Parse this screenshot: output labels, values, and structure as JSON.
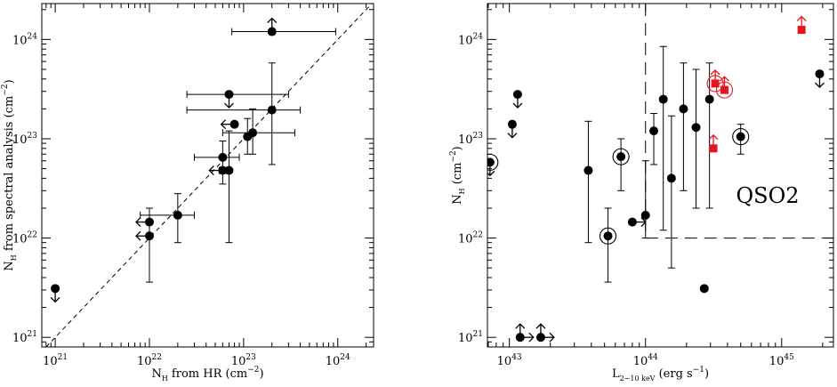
{
  "chart_data": [
    {
      "type": "scatter",
      "xlabel": {
        "main": "N",
        "sub": "H",
        "rest": " from HR (cm",
        "sup": "−2",
        "end": ")"
      },
      "ylabel": {
        "main": "N",
        "sub": "H",
        "rest": " from spectral analysis (cm",
        "sup": "−2",
        "end": ")"
      },
      "xscale": "log",
      "yscale": "log",
      "xlim": [
        7.2e+20,
        2.4e+24
      ],
      "ylim": [
        8e+20,
        2.3e+24
      ],
      "x_ticks": [
        {
          "mant": "10",
          "exp": "21",
          "value": 1e+21
        },
        {
          "mant": "10",
          "exp": "22",
          "value": 1e+22
        },
        {
          "mant": "10",
          "exp": "23",
          "value": 1e+23
        },
        {
          "mant": "10",
          "exp": "24",
          "value": 1e+24
        }
      ],
      "y_ticks": [
        {
          "mant": "10",
          "exp": "21",
          "value": 1e+21
        },
        {
          "mant": "10",
          "exp": "22",
          "value": 1e+22
        },
        {
          "mant": "10",
          "exp": "23",
          "value": 1e+23
        },
        {
          "mant": "10",
          "exp": "24",
          "value": 1e+24
        }
      ],
      "reference_line": "y = x (dashed)",
      "points": [
        {
          "x": 1e+21,
          "y": 3.1e+21,
          "limit": "down"
        },
        {
          "x": 1e+22,
          "y": 1.45e+22,
          "limit": "left"
        },
        {
          "x": 1e+22,
          "y": 1.05e+22,
          "limit": "left",
          "yerr": [
            3.6e+21,
            2e+22
          ]
        },
        {
          "x": 2e+22,
          "y": 1.7e+22,
          "xerr": [
            8e+21,
            3e+22
          ],
          "yerr": [
            9e+21,
            2.8e+22
          ]
        },
        {
          "x": 6e+22,
          "y": 6.5e+22,
          "xerr": [
            3e+22,
            9e+22
          ],
          "yerr": [
            3.5e+22,
            9.5e+22
          ]
        },
        {
          "x": 6e+22,
          "y": 4.8e+22,
          "limit": "left"
        },
        {
          "x": 7e+22,
          "y": 4.8e+22,
          "xerr": [
            5.5e+22,
            7e+22
          ],
          "yerr": [
            9e+21,
            1.2e+23
          ]
        },
        {
          "x": 7e+22,
          "y": 2.8e+23,
          "xerr": [
            2.5e+22,
            3e+23
          ],
          "limit": "down"
        },
        {
          "x": 8e+22,
          "y": 1.4e+23,
          "limit": "left"
        },
        {
          "x": 1.1e+23,
          "y": 1.05e+23,
          "yerr": [
            7e+22,
            1.6e+23
          ]
        },
        {
          "x": 1.25e+23,
          "y": 1.15e+23,
          "xerr": [
            6e+22,
            3.5e+23
          ],
          "yerr": [
            7e+22,
            2e+23
          ]
        },
        {
          "x": 2e+23,
          "y": 1.95e+23,
          "xerr": [
            2.5e+22,
            4e+23
          ],
          "yerr": [
            5.5e+22,
            5.8e+23
          ]
        },
        {
          "x": 2e+23,
          "y": 1.2e+24,
          "xerr": [
            7.5e+22,
            9.5e+23
          ],
          "limit": "up"
        }
      ]
    },
    {
      "type": "scatter",
      "xlabel": {
        "main": "L",
        "sub": "2−10 keV",
        "rest": " (erg s",
        "sup": "−1",
        "end": ")"
      },
      "ylabel": {
        "main": "N",
        "sub": "H",
        "rest": " (cm",
        "sup": "−2",
        "end": ")"
      },
      "xscale": "log",
      "yscale": "log",
      "xlim": [
        6.9e+42,
        2.4e+45
      ],
      "ylim": [
        8e+20,
        2.3e+24
      ],
      "x_ticks": [
        {
          "mant": "10",
          "exp": "43",
          "value": 1e+43
        },
        {
          "mant": "10",
          "exp": "44",
          "value": 1e+44
        },
        {
          "mant": "10",
          "exp": "45",
          "value": 1e+45
        }
      ],
      "y_ticks": [
        {
          "mant": "10",
          "exp": "21",
          "value": 1e+21
        },
        {
          "mant": "10",
          "exp": "22",
          "value": 1e+22
        },
        {
          "mant": "10",
          "exp": "23",
          "value": 1e+23
        },
        {
          "mant": "10",
          "exp": "24",
          "value": 1e+24
        }
      ],
      "region_label": "QSO2",
      "region_bounds": {
        "x_min": 1e+44,
        "y_min": 1e+22
      },
      "highlight_color": "#e8141e",
      "points": [
        {
          "x": 7.2e+42,
          "y": 5.8e+22,
          "circled": true,
          "limit": "down"
        },
        {
          "x": 1.05e+43,
          "y": 1.4e+23,
          "limit": "down"
        },
        {
          "x": 1.15e+43,
          "y": 2.8e+23,
          "limit": "down"
        },
        {
          "x": 1.2e+43,
          "y": 1e+21,
          "limit": "up-right"
        },
        {
          "x": 1.7e+43,
          "y": 1e+21,
          "limit": "up-right"
        },
        {
          "x": 3.8e+43,
          "y": 4.8e+22,
          "yerr": [
            9e+21,
            1.5e+23
          ]
        },
        {
          "x": 5.3e+43,
          "y": 1.05e+22,
          "circled": true,
          "yerr": [
            3.6e+21,
            2e+22
          ]
        },
        {
          "x": 6.6e+43,
          "y": 6.6e+22,
          "circled": true,
          "yerr": [
            3e+22,
            1e+23
          ]
        },
        {
          "x": 8e+43,
          "y": 1.45e+22,
          "limit": "right"
        },
        {
          "x": 1e+44,
          "y": 1.7e+22,
          "yerr": [
            1e+22,
            6e+22
          ]
        },
        {
          "x": 1.15e+44,
          "y": 1.2e+23,
          "yerr": [
            5.5e+22,
            1.8e+23
          ]
        },
        {
          "x": 1.35e+44,
          "y": 2.5e+23,
          "yerr": [
            1.2e+22,
            8.5e+23
          ]
        },
        {
          "x": 1.55e+44,
          "y": 4e+22,
          "yerr": [
            5e+21,
            1.7e+23
          ]
        },
        {
          "x": 1.9e+44,
          "y": 2e+23,
          "yerr": [
            3e+22,
            5.8e+23
          ]
        },
        {
          "x": 2.35e+44,
          "y": 1.3e+23,
          "yerr": [
            2e+22,
            5e+23
          ]
        },
        {
          "x": 2.7e+44,
          "y": 3.1e+21
        },
        {
          "x": 2.95e+44,
          "y": 2.5e+23,
          "yerr": [
            2e+22,
            5.8e+23
          ]
        },
        {
          "x": 3.15e+44,
          "y": 8e+22,
          "highlight": true,
          "limit": "up"
        },
        {
          "x": 3.25e+44,
          "y": 3.6e+23,
          "highlight": true,
          "circled": true,
          "limit": "up"
        },
        {
          "x": 3.8e+44,
          "y": 3.1e+23,
          "highlight": true,
          "circled": true,
          "limit": "up"
        },
        {
          "x": 5e+44,
          "y": 1.05e+23,
          "circled": true,
          "yerr": [
            7e+22,
            1.4e+23
          ]
        },
        {
          "x": 1.4e+45,
          "y": 1.25e+24,
          "highlight": true,
          "limit": "up"
        },
        {
          "x": 1.9e+45,
          "y": 4.5e+23,
          "limit": "down"
        }
      ]
    }
  ]
}
